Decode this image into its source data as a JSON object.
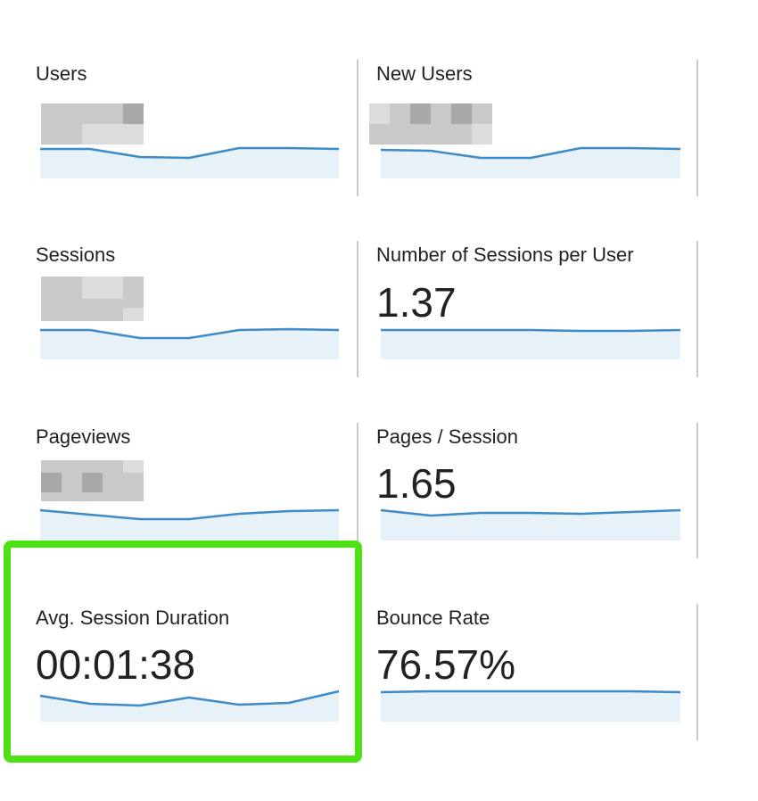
{
  "metrics": [
    {
      "label": "Users"
    },
    {
      "label": "New Users"
    },
    {
      "label": "Sessions"
    },
    {
      "label": "Number of Sessions per User",
      "value": "1.37"
    },
    {
      "label": "Pageviews"
    },
    {
      "label": "Pages / Session",
      "value": "1.65"
    },
    {
      "label": "Avg. Session Duration",
      "value": "00:01:38"
    },
    {
      "label": "Bounce Rate",
      "value": "76.57%"
    }
  ]
}
